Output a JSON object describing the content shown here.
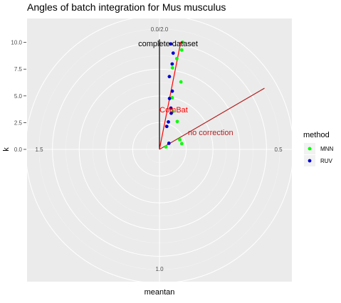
{
  "chart_data": {
    "type": "scatter",
    "coord": "polar",
    "title": "Angles of batch integration for Mus musculus",
    "xlabel": "meantan",
    "ylabel": "k",
    "theta_domain": [
      0,
      2.0
    ],
    "theta_ticks": [
      {
        "value": 0,
        "label": "0.0/2.0"
      },
      {
        "value": 0.5,
        "label": "0.5"
      },
      {
        "value": 1.0,
        "label": "1.0"
      },
      {
        "value": 1.5,
        "label": "1.5"
      }
    ],
    "r_domain": [
      0,
      13.5
    ],
    "r_ticks": [
      {
        "value": 0,
        "label": "0.0"
      },
      {
        "value": 2.5,
        "label": "2.5"
      },
      {
        "value": 5.0,
        "label": "5.0"
      },
      {
        "value": 7.5,
        "label": "7.5"
      },
      {
        "value": 10.0,
        "label": "10.0"
      }
    ],
    "grid": true,
    "legend": {
      "title": "method",
      "position": "right"
    },
    "series": [
      {
        "name": "MNN",
        "color": "#00ff00",
        "points": [
          {
            "theta": 0.068,
            "r": 10.24
          },
          {
            "theta": 0.07,
            "r": 9.52
          },
          {
            "theta": 0.06,
            "r": 8.64
          },
          {
            "theta": 0.05,
            "r": 7.72
          },
          {
            "theta": 0.098,
            "r": 6.62
          },
          {
            "theta": 0.077,
            "r": 4.97
          },
          {
            "theta": 0.108,
            "r": 3.74
          },
          {
            "theta": 0.181,
            "r": 3.09
          },
          {
            "theta": 0.358,
            "r": 2.1
          },
          {
            "theta": 0.42,
            "r": 2.15
          },
          {
            "theta": 0.385,
            "r": 0.65
          }
        ]
      },
      {
        "name": "RUV",
        "color": "#0000cc",
        "points": [
          {
            "theta": 0.034,
            "r": 9.91
          },
          {
            "theta": 0.045,
            "r": 9.09
          },
          {
            "theta": 0.047,
            "r": 8.07
          },
          {
            "theta": 0.043,
            "r": 6.87
          },
          {
            "theta": 0.069,
            "r": 5.57
          },
          {
            "theta": 0.062,
            "r": 4.85
          },
          {
            "theta": 0.086,
            "r": 4.0
          },
          {
            "theta": 0.1,
            "r": 3.55
          },
          {
            "theta": 0.1,
            "r": 2.7
          },
          {
            "theta": 0.098,
            "r": 2.25
          },
          {
            "theta": 0.318,
            "r": 1.05
          }
        ]
      }
    ],
    "reference_lines": [
      {
        "label": "complete dataset",
        "theta": 0.0,
        "r": 10.28,
        "color": "#000000"
      },
      {
        "label": "ComBat",
        "theta": 0.0623,
        "r": 10.26,
        "color": "#ff0000"
      },
      {
        "label": "no correction",
        "theta": 0.332,
        "r": 11.35,
        "color": "#b22222"
      }
    ]
  }
}
